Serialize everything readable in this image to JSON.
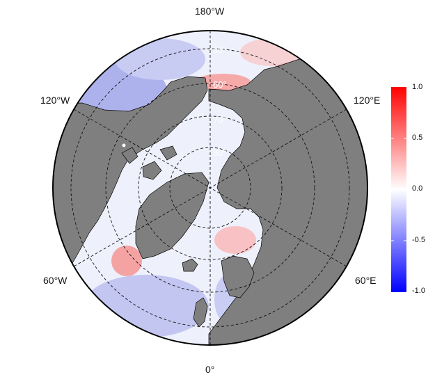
{
  "map": {
    "projection": "north-polar-stereographic",
    "land_color": "#7f7f7f",
    "lon_labels": {
      "top": "180°W",
      "bottom": "0°",
      "upper_left": "120°W",
      "upper_right": "120°E",
      "lower_left": "60°W",
      "lower_right": "60°E"
    },
    "lat_labels": [
      "50°",
      "60°",
      "70°",
      "80°"
    ]
  },
  "colorbar": {
    "low_color": "#0000ff",
    "mid_color": "#ffffff",
    "high_color": "#ff0000",
    "ticks": [
      "1.0",
      "0.5",
      "0.0",
      "-0.5",
      "-1.0"
    ]
  }
}
